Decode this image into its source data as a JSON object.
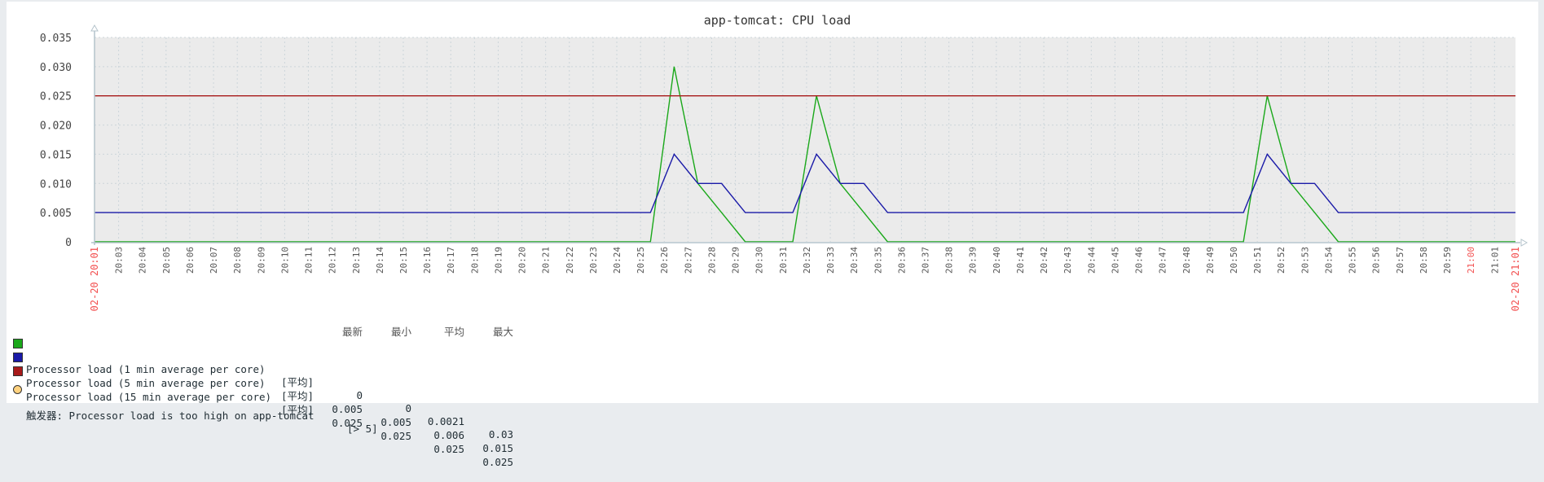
{
  "chart_data": {
    "type": "line",
    "title": "app-tomcat: CPU load",
    "xlim": [
      "20:01:59",
      "21:01:53"
    ],
    "ylim": [
      0,
      0.035
    ],
    "y_ticks": [
      "0",
      "0.005",
      "0.010",
      "0.015",
      "0.020",
      "0.025",
      "0.030",
      "0.035"
    ],
    "x_ticks": [
      "20:03",
      "20:04",
      "20:05",
      "20:06",
      "20:07",
      "20:08",
      "20:09",
      "20:10",
      "20:11",
      "20:12",
      "20:13",
      "20:14",
      "20:15",
      "20:16",
      "20:17",
      "20:18",
      "20:19",
      "20:20",
      "20:21",
      "20:22",
      "20:23",
      "20:24",
      "20:25",
      "20:26",
      "20:27",
      "20:28",
      "20:29",
      "20:30",
      "20:31",
      "20:32",
      "20:33",
      "20:34",
      "20:35",
      "20:36",
      "20:37",
      "20:38",
      "20:39",
      "20:40",
      "20:41",
      "20:42",
      "20:43",
      "20:44",
      "20:45",
      "20:46",
      "20:47",
      "20:48",
      "20:49",
      "20:50",
      "20:51",
      "20:52",
      "20:53",
      "20:54",
      "20:55",
      "20:56",
      "20:57",
      "20:58",
      "20:59",
      "21:00",
      "21:01"
    ],
    "x_start_label": "02-20 20:01",
    "x_end_label": "02-20 21:01",
    "highlight_tick": "21:00",
    "grid": true,
    "legend_position": "bottom",
    "series": [
      {
        "name": "Processor load (1 min average per core)",
        "color": "#1aa81a",
        "points": [
          [
            "20:01:59",
            0
          ],
          [
            "20:25:25",
            0
          ],
          [
            "20:26:25",
            0.03
          ],
          [
            "20:27:25",
            0.01
          ],
          [
            "20:28:25",
            0.005
          ],
          [
            "20:29:25",
            0
          ],
          [
            "20:31:25",
            0
          ],
          [
            "20:32:25",
            0.025
          ],
          [
            "20:33:25",
            0.01
          ],
          [
            "20:34:25",
            0.005
          ],
          [
            "20:35:25",
            0
          ],
          [
            "20:50:25",
            0
          ],
          [
            "20:51:25",
            0.025
          ],
          [
            "20:52:25",
            0.01
          ],
          [
            "20:53:25",
            0.005
          ],
          [
            "20:54:25",
            0
          ],
          [
            "21:01:53",
            0
          ]
        ]
      },
      {
        "name": "Processor load (5 min average per core)",
        "color": "#1a1aa8",
        "points": [
          [
            "20:01:59",
            0.005
          ],
          [
            "20:25:25",
            0.005
          ],
          [
            "20:26:25",
            0.015
          ],
          [
            "20:27:25",
            0.01
          ],
          [
            "20:28:25",
            0.01
          ],
          [
            "20:29:25",
            0.005
          ],
          [
            "20:31:25",
            0.005
          ],
          [
            "20:32:25",
            0.015
          ],
          [
            "20:33:25",
            0.01
          ],
          [
            "20:34:25",
            0.01
          ],
          [
            "20:35:25",
            0.005
          ],
          [
            "20:50:25",
            0.005
          ],
          [
            "20:51:25",
            0.015
          ],
          [
            "20:52:25",
            0.01
          ],
          [
            "20:53:25",
            0.01
          ],
          [
            "20:54:25",
            0.005
          ],
          [
            "21:01:53",
            0.005
          ]
        ]
      },
      {
        "name": "Processor load (15 min average per core)",
        "color": "#a81a1a",
        "points": [
          [
            "20:01:59",
            0.025
          ],
          [
            "21:01:53",
            0.025
          ]
        ]
      }
    ]
  },
  "legend": {
    "headers": [
      "最新",
      "最小",
      "平均",
      "最大"
    ],
    "rows": [
      {
        "name": "Processor load (1 min average per core)",
        "func": "[平均]",
        "color": "#1aa81a",
        "last": "0",
        "min": "0",
        "avg": "0.0021",
        "max": "0.03"
      },
      {
        "name": "Processor load (5 min average per core)",
        "func": "[平均]",
        "color": "#1a1aa8",
        "last": "0.005",
        "min": "0.005",
        "avg": "0.006",
        "max": "0.015"
      },
      {
        "name": "Processor load (15 min average per core)",
        "func": "[平均]",
        "color": "#a81a1a",
        "last": "0.025",
        "min": "0.025",
        "avg": "0.025",
        "max": "0.025"
      }
    ],
    "trigger": {
      "text": "触发器: Processor load is too high on app-tomcat",
      "condition": "[> 5]",
      "color": "#ffd27f"
    }
  }
}
